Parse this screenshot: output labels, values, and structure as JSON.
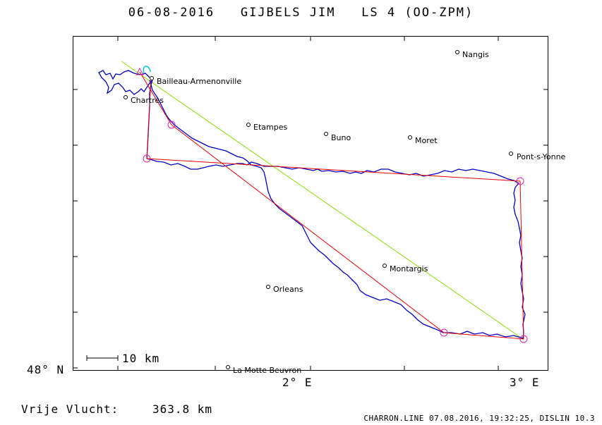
{
  "title": "06-08-2016   GIJBELS JIM   LS 4 (OO-ZPM)",
  "axes": {
    "y_label": "48° N",
    "x_labels": [
      "2° E",
      "3° E"
    ]
  },
  "scale_bar": {
    "label": "10 km"
  },
  "distance": {
    "label": "Vrije Vlucht:",
    "value": "363.8 km"
  },
  "footer": "CHARRON.LINE 07.08.2016, 19:32:25, DISLIN 10.3",
  "cities": [
    {
      "name": "Nangis"
    },
    {
      "name": "Bailleau-Armenonville"
    },
    {
      "name": "Chartres"
    },
    {
      "name": "Etampes"
    },
    {
      "name": "Buno"
    },
    {
      "name": "Moret"
    },
    {
      "name": "Pont-s-Yonne"
    },
    {
      "name": "Montargis"
    },
    {
      "name": "Orleans"
    },
    {
      "name": "La Motte Beuvron"
    }
  ],
  "colors": {
    "track": "#0000cc",
    "task_line": "#ee0000",
    "free_line": "#88e000",
    "turnpoint": "#dd22aa",
    "start": "#00cccc"
  }
}
